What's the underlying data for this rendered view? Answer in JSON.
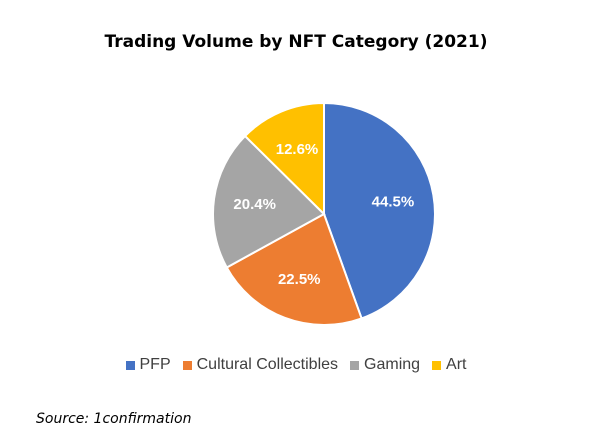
{
  "chart_data": {
    "type": "pie",
    "title": "Trading Volume by NFT Category (2021)",
    "slices": [
      {
        "name": "PFP",
        "value": 44.5,
        "label": "44.5%",
        "color": "#4472C4"
      },
      {
        "name": "Cultural Collectibles",
        "value": 22.5,
        "label": "22.5%",
        "color": "#ED7D31"
      },
      {
        "name": "Gaming",
        "value": 20.4,
        "label": "20.4%",
        "color": "#A5A5A5"
      },
      {
        "name": "Art",
        "value": 12.6,
        "label": "12.6%",
        "color": "#FFC000"
      }
    ],
    "legend_position": "bottom",
    "start_angle_deg": 0,
    "direction": "clockwise"
  },
  "source": "Source: 1confirmation"
}
